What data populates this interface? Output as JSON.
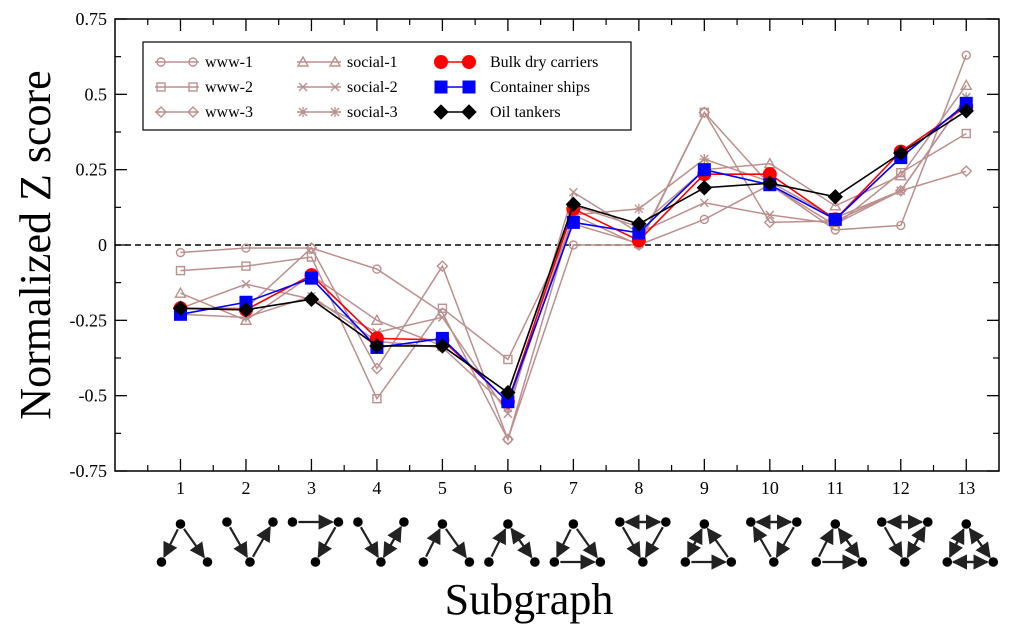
{
  "chart_data": {
    "type": "line",
    "title": "",
    "xlabel": "Subgraph",
    "ylabel": "Normalized Z score",
    "xlim": [
      0,
      13.5
    ],
    "ylim": [
      -0.75,
      0.75
    ],
    "x": [
      1,
      2,
      3,
      4,
      5,
      6,
      7,
      8,
      9,
      10,
      11,
      12,
      13
    ],
    "xticks": [
      "1",
      "2",
      "3",
      "4",
      "5",
      "6",
      "7",
      "8",
      "9",
      "10",
      "11",
      "12",
      "13"
    ],
    "yticks": [
      {
        "v": -0.75,
        "label": "-0.75"
      },
      {
        "v": -0.5,
        "label": "-0.5"
      },
      {
        "v": -0.25,
        "label": "-0.25"
      },
      {
        "v": 0,
        "label": "0"
      },
      {
        "v": 0.25,
        "label": "0.25"
      },
      {
        "v": 0.5,
        "label": "0.5"
      },
      {
        "v": 0.75,
        "label": "0.75"
      }
    ],
    "zero_line": true,
    "legend_position": "top-left",
    "series": [
      {
        "name": "www-1",
        "color": "#bc8f8f",
        "marker": "circle-open",
        "values": [
          -0.025,
          -0.01,
          -0.01,
          -0.08,
          -0.225,
          -0.645,
          0.0,
          0.0,
          0.085,
          0.2,
          0.05,
          0.065,
          0.63
        ]
      },
      {
        "name": "www-2",
        "color": "#bc8f8f",
        "marker": "square-open",
        "values": [
          -0.085,
          -0.07,
          -0.04,
          -0.51,
          -0.21,
          -0.38,
          0.07,
          0.005,
          0.44,
          0.2,
          0.065,
          0.24,
          0.37
        ]
      },
      {
        "name": "www-3",
        "color": "#bc8f8f",
        "marker": "diamond-open",
        "values": [
          -0.21,
          -0.21,
          -0.01,
          -0.41,
          -0.07,
          -0.645,
          0.1,
          0.0,
          0.44,
          0.075,
          0.08,
          0.18,
          0.245
        ]
      },
      {
        "name": "social-1",
        "color": "#bc8f8f",
        "marker": "triangle-open",
        "values": [
          -0.16,
          -0.25,
          -0.1,
          -0.25,
          -0.335,
          -0.49,
          0.13,
          0.06,
          0.25,
          0.27,
          0.13,
          0.23,
          0.53
        ]
      },
      {
        "name": "social-2",
        "color": "#bc8f8f",
        "marker": "x",
        "values": [
          -0.21,
          -0.13,
          -0.18,
          -0.29,
          -0.24,
          -0.56,
          0.175,
          0.04,
          0.14,
          0.1,
          0.07,
          0.18,
          0.49
        ]
      },
      {
        "name": "social-3",
        "color": "#bc8f8f",
        "marker": "star",
        "values": [
          -0.23,
          -0.24,
          -0.17,
          -0.32,
          -0.34,
          -0.54,
          0.1,
          0.12,
          0.285,
          0.21,
          0.09,
          0.18,
          0.49
        ]
      },
      {
        "name": "Bulk dry carriers",
        "color": "#ff0000",
        "marker": "circle-filled",
        "values": [
          -0.21,
          -0.215,
          -0.1,
          -0.31,
          -0.315,
          -0.52,
          0.12,
          0.015,
          0.235,
          0.235,
          0.085,
          0.31,
          0.46
        ]
      },
      {
        "name": "Container ships",
        "color": "#0000ff",
        "marker": "square-filled",
        "values": [
          -0.23,
          -0.19,
          -0.11,
          -0.34,
          -0.31,
          -0.52,
          0.075,
          0.04,
          0.25,
          0.2,
          0.085,
          0.29,
          0.47
        ]
      },
      {
        "name": "Oil tankers",
        "color": "#000000",
        "marker": "diamond-filled",
        "values": [
          -0.21,
          -0.215,
          -0.18,
          -0.335,
          -0.335,
          -0.49,
          0.135,
          0.07,
          0.19,
          0.205,
          0.16,
          0.305,
          0.445
        ]
      }
    ]
  }
}
